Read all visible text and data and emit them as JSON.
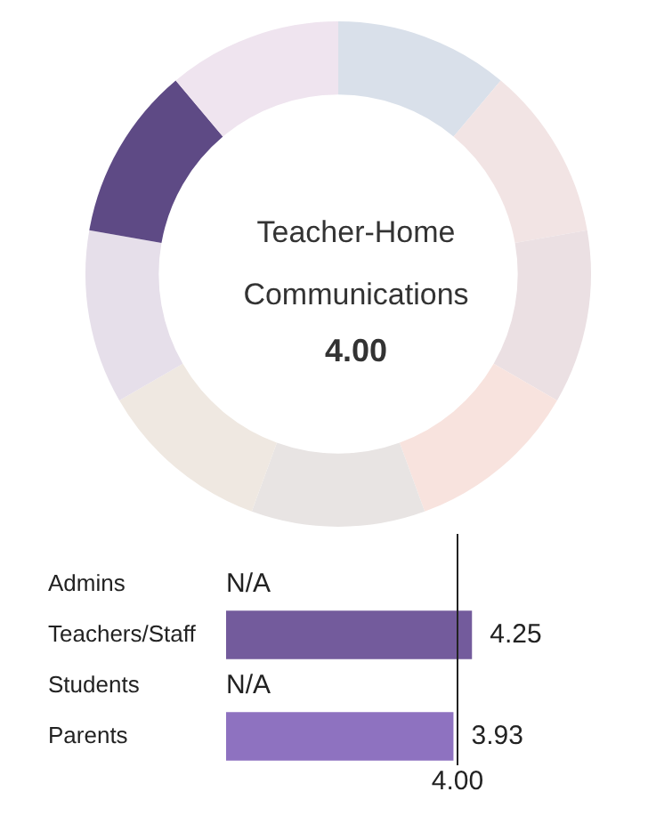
{
  "chart_data": [
    {
      "type": "donut",
      "title": "Teacher-Home Communications",
      "annotations": [
        "4.00"
      ],
      "categories": [
        null,
        null,
        null,
        null,
        null,
        null,
        null,
        null,
        null
      ],
      "values": [
        11.11,
        11.11,
        11.11,
        11.11,
        11.11,
        11.11,
        11.11,
        11.11,
        11.11
      ],
      "colors": [
        "#d9e0ea",
        "#f2e4e4",
        "#ebe0e3",
        "#f8e3de",
        "#e8e4e3",
        "#efe8e1",
        "#e6dfea",
        "#5e4a85",
        "#efe4ef"
      ],
      "legend": false
    },
    {
      "type": "bar",
      "orientation": "horizontal",
      "categories": [
        "Admins",
        "Teachers/Staff",
        "Students",
        "Parents"
      ],
      "values": [
        null,
        4.25,
        null,
        3.93
      ],
      "colors": [
        "#735b9c",
        "#735b9c",
        "#8e72c0",
        "#8e72c0"
      ],
      "value_labels": [
        "N/A",
        "4.25",
        "N/A",
        "3.93"
      ],
      "ref_lines": [
        {
          "axis": "x",
          "value": 4.0,
          "label": "4.00",
          "color": "#222222"
        }
      ],
      "legend": false
    }
  ]
}
